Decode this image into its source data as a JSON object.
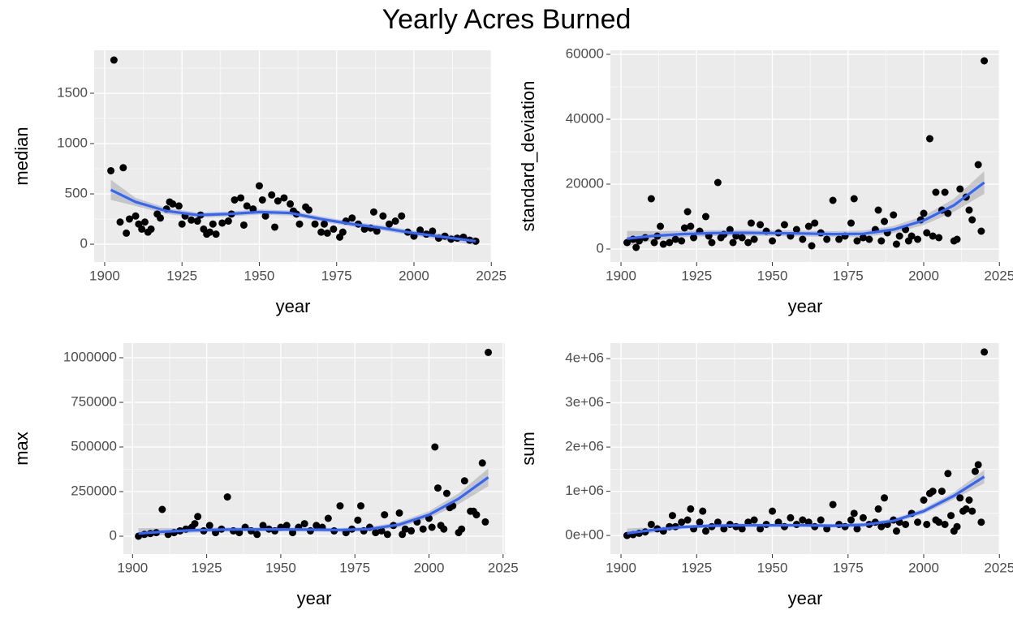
{
  "title": "Yearly Acres Burned",
  "chart_data": [
    {
      "type": "scatter",
      "xlabel": "year",
      "ylabel": "median",
      "color": "#000000",
      "grid": true,
      "xlim": [
        1896.6,
        2025.2
      ],
      "ylim": [
        -177,
        1927
      ],
      "xticks": [
        1900,
        1925,
        1950,
        1975,
        2000,
        2025
      ],
      "yticks": [
        0,
        500,
        1000,
        1500
      ],
      "x": [
        1902,
        1903,
        1905,
        1906,
        1907,
        1908,
        1910,
        1911,
        1912,
        1913,
        1914,
        1915,
        1917,
        1918,
        1920,
        1921,
        1922,
        1924,
        1925,
        1926,
        1928,
        1930,
        1931,
        1932,
        1933,
        1934,
        1935,
        1936,
        1938,
        1940,
        1941,
        1942,
        1944,
        1945,
        1946,
        1948,
        1950,
        1951,
        1952,
        1954,
        1955,
        1956,
        1958,
        1960,
        1961,
        1962,
        1963,
        1965,
        1966,
        1968,
        1970,
        1971,
        1972,
        1974,
        1976,
        1977,
        1978,
        1980,
        1982,
        1984,
        1986,
        1987,
        1988,
        1990,
        1992,
        1994,
        1996,
        1998,
        2000,
        2002,
        2004,
        2006,
        2008,
        2010,
        2012,
        2014,
        2016,
        2018,
        2020
      ],
      "values": [
        730,
        1830,
        220,
        760,
        110,
        250,
        280,
        200,
        150,
        220,
        120,
        150,
        300,
        260,
        350,
        420,
        400,
        380,
        200,
        280,
        240,
        230,
        290,
        150,
        100,
        120,
        200,
        100,
        210,
        230,
        300,
        440,
        460,
        190,
        380,
        350,
        580,
        440,
        280,
        490,
        170,
        430,
        460,
        400,
        330,
        300,
        200,
        370,
        340,
        200,
        120,
        200,
        110,
        150,
        70,
        120,
        230,
        260,
        200,
        150,
        160,
        320,
        130,
        280,
        200,
        230,
        280,
        120,
        80,
        140,
        100,
        130,
        60,
        80,
        50,
        60,
        70,
        40,
        30
      ],
      "smooth": {
        "color": "#3366ff",
        "band_color": "#999999",
        "x": [
          1902,
          1910,
          1920,
          1930,
          1940,
          1950,
          1960,
          1970,
          1980,
          1990,
          2000,
          2010,
          2020
        ],
        "values": [
          540,
          420,
          330,
          290,
          300,
          320,
          310,
          250,
          200,
          160,
          110,
          70,
          30
        ],
        "lower": [
          440,
          380,
          300,
          265,
          275,
          295,
          285,
          225,
          175,
          135,
          85,
          40,
          -10
        ],
        "upper": [
          640,
          460,
          360,
          315,
          325,
          345,
          335,
          275,
          225,
          185,
          135,
          100,
          70
        ]
      }
    },
    {
      "type": "scatter",
      "xlabel": "year",
      "ylabel": "standard_deviation",
      "color": "#000000",
      "grid": true,
      "xlim": [
        1896.5,
        2025.2
      ],
      "ylim": [
        -4000,
        61250
      ],
      "xticks": [
        1900,
        1925,
        1950,
        1975,
        2000,
        2025
      ],
      "yticks": [
        0,
        20000,
        40000,
        60000
      ],
      "x": [
        1902,
        1904,
        1905,
        1906,
        1908,
        1910,
        1911,
        1912,
        1913,
        1914,
        1916,
        1918,
        1920,
        1921,
        1922,
        1923,
        1924,
        1926,
        1928,
        1929,
        1930,
        1932,
        1933,
        1934,
        1936,
        1937,
        1938,
        1940,
        1942,
        1943,
        1944,
        1946,
        1948,
        1950,
        1952,
        1954,
        1956,
        1958,
        1960,
        1962,
        1963,
        1964,
        1966,
        1968,
        1970,
        1972,
        1974,
        1976,
        1977,
        1978,
        1980,
        1982,
        1984,
        1985,
        1986,
        1987,
        1988,
        1990,
        1991,
        1992,
        1994,
        1995,
        1996,
        1998,
        1999,
        2000,
        2001,
        2002,
        2003,
        2004,
        2005,
        2006,
        2007,
        2008,
        2010,
        2011,
        2012,
        2014,
        2015,
        2016,
        2018,
        2019,
        2020
      ],
      "values": [
        2000,
        3000,
        500,
        2500,
        3500,
        15500,
        2000,
        4000,
        7000,
        1500,
        2000,
        3000,
        2500,
        6500,
        11500,
        7000,
        3500,
        5500,
        10000,
        4000,
        2000,
        20500,
        3500,
        4500,
        6000,
        2000,
        4000,
        3500,
        2000,
        8000,
        3000,
        7500,
        5500,
        2500,
        5000,
        7500,
        4000,
        6000,
        3000,
        7000,
        1000,
        8000,
        5000,
        3000,
        15000,
        3000,
        4000,
        8000,
        15500,
        2500,
        3500,
        3000,
        6000,
        12000,
        2500,
        8500,
        5000,
        10500,
        1500,
        4000,
        6000,
        2500,
        4000,
        3000,
        9000,
        11000,
        5000,
        34000,
        4000,
        17500,
        3500,
        12000,
        17500,
        11000,
        2500,
        3000,
        18500,
        16000,
        12000,
        9000,
        26000,
        5500,
        58000
      ],
      "smooth": {
        "color": "#3366ff",
        "band_color": "#999999",
        "x": [
          1902,
          1910,
          1920,
          1930,
          1940,
          1950,
          1960,
          1970,
          1980,
          1990,
          2000,
          2010,
          2020
        ],
        "values": [
          3200,
          4000,
          4600,
          4900,
          5000,
          4900,
          4800,
          4600,
          4700,
          6000,
          8800,
          13500,
          20500
        ],
        "lower": [
          800,
          2500,
          3600,
          4000,
          4100,
          4000,
          3900,
          3700,
          3700,
          4900,
          7400,
          11500,
          17000
        ],
        "upper": [
          5600,
          5500,
          5600,
          5800,
          5900,
          5800,
          5700,
          5500,
          5700,
          7100,
          10200,
          15500,
          24000
        ]
      }
    },
    {
      "type": "scatter",
      "xlabel": "year",
      "ylabel": "max",
      "color": "#000000",
      "grid": true,
      "xlim": [
        1896.9,
        2025.6
      ],
      "ylim": [
        -100000,
        1081800
      ],
      "xticks": [
        1900,
        1925,
        1950,
        1975,
        2000,
        2025
      ],
      "yticks": [
        0,
        250000,
        500000,
        750000,
        1000000
      ],
      "x": [
        1902,
        1904,
        1906,
        1908,
        1910,
        1912,
        1914,
        1916,
        1918,
        1920,
        1921,
        1922,
        1924,
        1926,
        1928,
        1930,
        1932,
        1934,
        1936,
        1938,
        1940,
        1942,
        1944,
        1946,
        1948,
        1950,
        1952,
        1954,
        1956,
        1958,
        1960,
        1962,
        1964,
        1966,
        1968,
        1970,
        1972,
        1974,
        1976,
        1977,
        1978,
        1980,
        1982,
        1984,
        1985,
        1986,
        1988,
        1990,
        1991,
        1992,
        1994,
        1996,
        1998,
        2000,
        2001,
        2002,
        2003,
        2004,
        2005,
        2006,
        2007,
        2008,
        2010,
        2011,
        2012,
        2014,
        2015,
        2016,
        2018,
        2019,
        2020
      ],
      "values": [
        0,
        10000,
        15000,
        20000,
        150000,
        10000,
        20000,
        30000,
        40000,
        50000,
        70000,
        110000,
        30000,
        60000,
        20000,
        40000,
        220000,
        30000,
        20000,
        50000,
        30000,
        10000,
        60000,
        40000,
        30000,
        50000,
        60000,
        20000,
        50000,
        70000,
        30000,
        60000,
        50000,
        100000,
        30000,
        170000,
        20000,
        40000,
        90000,
        170000,
        30000,
        50000,
        20000,
        30000,
        120000,
        10000,
        60000,
        130000,
        10000,
        40000,
        30000,
        80000,
        40000,
        100000,
        50000,
        500000,
        270000,
        60000,
        40000,
        240000,
        160000,
        170000,
        20000,
        40000,
        310000,
        140000,
        140000,
        120000,
        410000,
        80000,
        1030000
      ],
      "smooth": {
        "color": "#3366ff",
        "band_color": "#999999",
        "x": [
          1902,
          1910,
          1920,
          1930,
          1940,
          1950,
          1960,
          1970,
          1980,
          1990,
          2000,
          2010,
          2020
        ],
        "values": [
          15000,
          25000,
          33000,
          37000,
          38000,
          38000,
          37000,
          35000,
          40000,
          65000,
          120000,
          210000,
          330000
        ],
        "lower": [
          -15000,
          5000,
          20000,
          25000,
          27000,
          27000,
          26000,
          24000,
          28000,
          50000,
          100000,
          180000,
          280000
        ],
        "upper": [
          45000,
          45000,
          46000,
          49000,
          49000,
          49000,
          48000,
          46000,
          52000,
          80000,
          140000,
          240000,
          380000
        ]
      }
    },
    {
      "type": "scatter",
      "xlabel": "year",
      "ylabel": "sum",
      "color": "#000000",
      "grid": true,
      "xlim": [
        1896.5,
        2025.2
      ],
      "ylim": [
        -420000,
        4350000
      ],
      "xticks": [
        1900,
        1925,
        1950,
        1975,
        2000,
        2025
      ],
      "yticks": [
        {
          "value": 0,
          "label": "0e+00"
        },
        {
          "value": 1000000,
          "label": "1e+06"
        },
        {
          "value": 2000000,
          "label": "2e+06"
        },
        {
          "value": 3000000,
          "label": "3e+06"
        },
        {
          "value": 4000000,
          "label": "4e+06"
        }
      ],
      "x": [
        1902,
        1904,
        1906,
        1908,
        1910,
        1912,
        1914,
        1916,
        1917,
        1918,
        1920,
        1922,
        1923,
        1924,
        1926,
        1927,
        1928,
        1930,
        1932,
        1934,
        1936,
        1938,
        1940,
        1942,
        1944,
        1946,
        1948,
        1950,
        1952,
        1954,
        1956,
        1958,
        1960,
        1962,
        1964,
        1966,
        1968,
        1970,
        1972,
        1974,
        1976,
        1977,
        1978,
        1980,
        1982,
        1984,
        1985,
        1986,
        1987,
        1988,
        1990,
        1991,
        1992,
        1994,
        1996,
        1998,
        2000,
        2001,
        2002,
        2003,
        2004,
        2005,
        2006,
        2007,
        2008,
        2009,
        2010,
        2011,
        2012,
        2013,
        2014,
        2015,
        2016,
        2017,
        2018,
        2019,
        2020
      ],
      "values": [
        0,
        20000,
        50000,
        80000,
        250000,
        150000,
        100000,
        200000,
        450000,
        200000,
        300000,
        350000,
        600000,
        150000,
        300000,
        550000,
        100000,
        200000,
        300000,
        150000,
        250000,
        200000,
        150000,
        300000,
        350000,
        150000,
        250000,
        550000,
        300000,
        200000,
        400000,
        250000,
        350000,
        300000,
        200000,
        350000,
        150000,
        700000,
        250000,
        200000,
        350000,
        500000,
        150000,
        400000,
        250000,
        300000,
        600000,
        200000,
        850000,
        250000,
        350000,
        100000,
        300000,
        250000,
        500000,
        300000,
        800000,
        250000,
        950000,
        1000000,
        350000,
        300000,
        1000000,
        250000,
        1400000,
        450000,
        100000,
        200000,
        850000,
        550000,
        600000,
        800000,
        550000,
        1450000,
        1600000,
        300000,
        4150000
      ],
      "smooth": {
        "color": "#3366ff",
        "band_color": "#999999",
        "x": [
          1902,
          1910,
          1920,
          1930,
          1940,
          1950,
          1960,
          1970,
          1980,
          1990,
          2000,
          2010,
          2020
        ],
        "values": [
          50000,
          120000,
          190000,
          220000,
          230000,
          230000,
          230000,
          220000,
          240000,
          330000,
          550000,
          900000,
          1330000
        ],
        "lower": [
          -60000,
          60000,
          150000,
          180000,
          190000,
          190000,
          190000,
          180000,
          195000,
          280000,
          490000,
          820000,
          1180000
        ],
        "upper": [
          160000,
          180000,
          230000,
          260000,
          270000,
          270000,
          270000,
          260000,
          285000,
          380000,
          610000,
          980000,
          1480000
        ]
      }
    }
  ]
}
